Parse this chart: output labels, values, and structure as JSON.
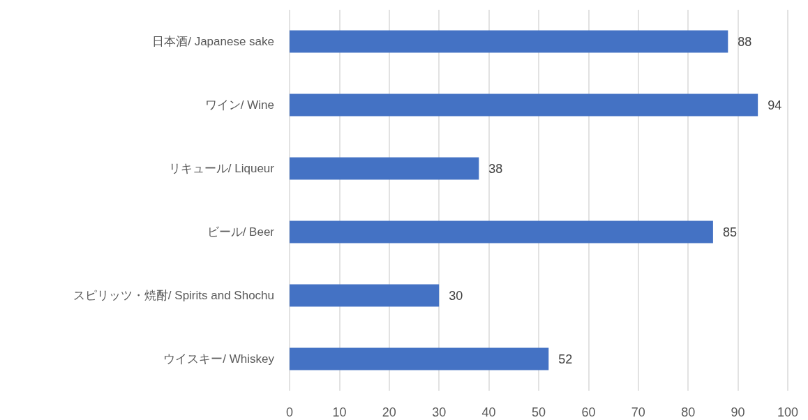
{
  "chart_data": {
    "type": "bar",
    "orientation": "horizontal",
    "categories": [
      "日本酒/ Japanese sake",
      "ワイン/ Wine",
      "リキュール/ Liqueur",
      "ビール/ Beer",
      "スピリッツ・焼酎/ Spirits and Shochu",
      "ウイスキー/ Whiskey"
    ],
    "values": [
      88,
      94,
      38,
      85,
      30,
      52
    ],
    "color": "#4472c4",
    "xlim": [
      0,
      100
    ],
    "xticks": [
      0,
      10,
      20,
      30,
      40,
      50,
      60,
      70,
      80,
      90,
      100
    ],
    "grid": "x",
    "data_labels": true
  }
}
